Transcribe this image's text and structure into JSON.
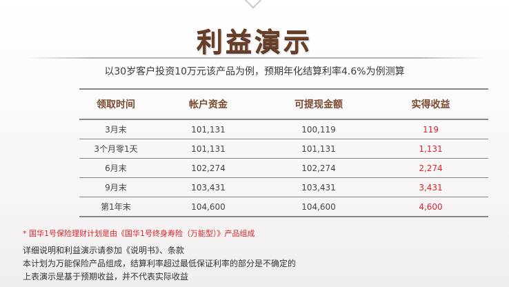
{
  "title": "利益演示",
  "subtitle": "以30岁客户投资10万元该产品为例，预期年化结算利率4.6%为例测算",
  "table": {
    "headers": [
      "领取时间",
      "帐户资金",
      "可提现金额",
      "实得收益"
    ],
    "rows": [
      [
        "3月末",
        "101,131",
        "100,119",
        "119"
      ],
      [
        "3个月零1天",
        "101,131",
        "101,131",
        "1,131"
      ],
      [
        "6月末",
        "102,274",
        "102,274",
        "2,274"
      ],
      [
        "9月末",
        "103,431",
        "103,431",
        "3,431"
      ],
      [
        "第1年末",
        "104,600",
        "104,600",
        "4,600"
      ]
    ]
  },
  "note": "* 国华1号保险理财计划是由《国华1号终身寿险（万能型）》产品组成",
  "description": [
    "详细说明和利益演示请参加《说明书》、条款",
    "本计划为万能保险产品组成，结算利率超过最低保证利率的部分是不确定的",
    "上表演示是基于预期收益，并不代表实际收益"
  ],
  "colors": {
    "title": "#6a3f28",
    "header_text": "#7a4a2e",
    "gain_text": "#e0202a",
    "rule": "#8a8585"
  }
}
